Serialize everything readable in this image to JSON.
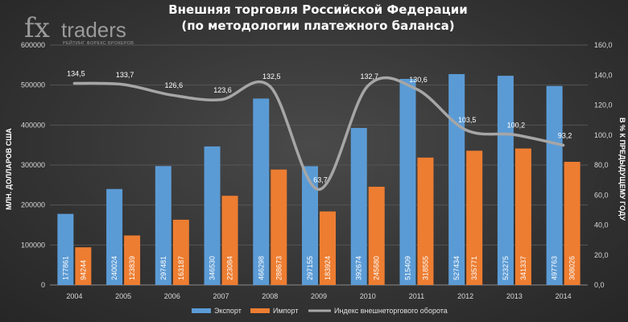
{
  "logo": {
    "fx": "fx",
    "traders": "traders",
    "tagline": "РЕЙТИНГ ФОРЕКС БРОКЕРОВ"
  },
  "colors": {
    "export": "#5b9bd5",
    "import": "#ed7d31",
    "index": "#a6a6a6"
  },
  "chart_data": {
    "type": "bar",
    "title": "Внешняя торговля Российской Федерации",
    "subtitle": "(по методологии платежного баланса)",
    "categories": [
      "2004",
      "2005",
      "2006",
      "2007",
      "2008",
      "2009",
      "2010",
      "2011",
      "2012",
      "2013",
      "2014"
    ],
    "series": [
      {
        "name": "Экспорт",
        "type": "bar",
        "axis": "left",
        "values": [
          177861,
          240024,
          297481,
          346530,
          466298,
          297155,
          392674,
          515409,
          527434,
          523275,
          497763
        ]
      },
      {
        "name": "Импорт",
        "type": "bar",
        "axis": "left",
        "values": [
          94244,
          123839,
          163187,
          223084,
          288673,
          183924,
          245680,
          318555,
          335771,
          341337,
          308026
        ]
      },
      {
        "name": "Индекс внешнеторгового оборота",
        "type": "line",
        "axis": "right",
        "values": [
          134.5,
          133.7,
          126.6,
          123.6,
          132.5,
          63.7,
          132.7,
          130.6,
          103.5,
          100.2,
          93.2
        ],
        "labels": [
          "134,5",
          "133,7",
          "126,6",
          "123,6",
          "132,5",
          "63,7",
          "132,7",
          "130,6",
          "103,5",
          "100,2",
          "93,2"
        ]
      }
    ],
    "ylabel": "МЛН. ДОЛЛАРОВ США",
    "y2label": "В % К ПРЕДЫДУЩЕМУ ГОДУ",
    "ylim": [
      0,
      600000
    ],
    "y2lim": [
      0,
      160
    ],
    "yticks": [
      "0",
      "100000",
      "200000",
      "300000",
      "400000",
      "500000",
      "600000"
    ],
    "y2ticks": [
      "0,0",
      "20,0",
      "40,0",
      "60,0",
      "80,0",
      "100,0",
      "120,0",
      "140,0",
      "160,0"
    ],
    "legend_position": "bottom",
    "grid": true
  }
}
